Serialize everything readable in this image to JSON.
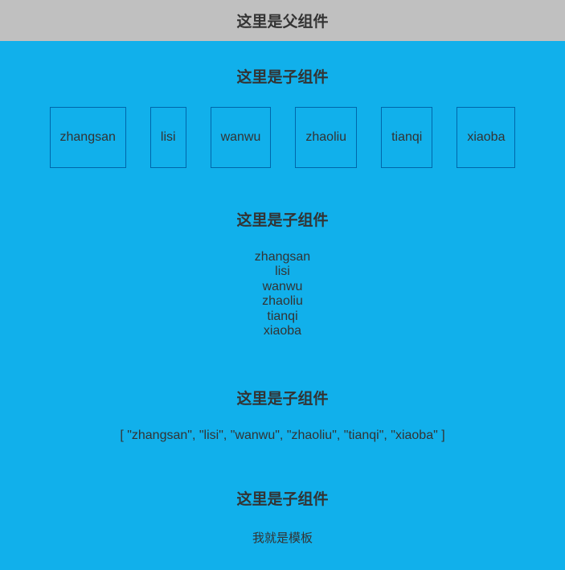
{
  "parent": {
    "title": "这里是父组件"
  },
  "child": {
    "title1": "这里是子组件",
    "title2": "这里是子组件",
    "title3": "这里是子组件",
    "title4": "这里是子组件",
    "items": [
      "zhangsan",
      "lisi",
      "wanwu",
      "zhaoliu",
      "tianqi",
      "xiaoba"
    ],
    "array_text": "[ \"zhangsan\", \"lisi\", \"wanwu\", \"zhaoliu\", \"tianqi\", \"xiaoba\" ]",
    "template_text": "我就是模板"
  },
  "colors": {
    "header_bg": "#c0c0c0",
    "child_bg": "#11b0eb",
    "box_border": "#0066aa",
    "text": "#333333"
  }
}
